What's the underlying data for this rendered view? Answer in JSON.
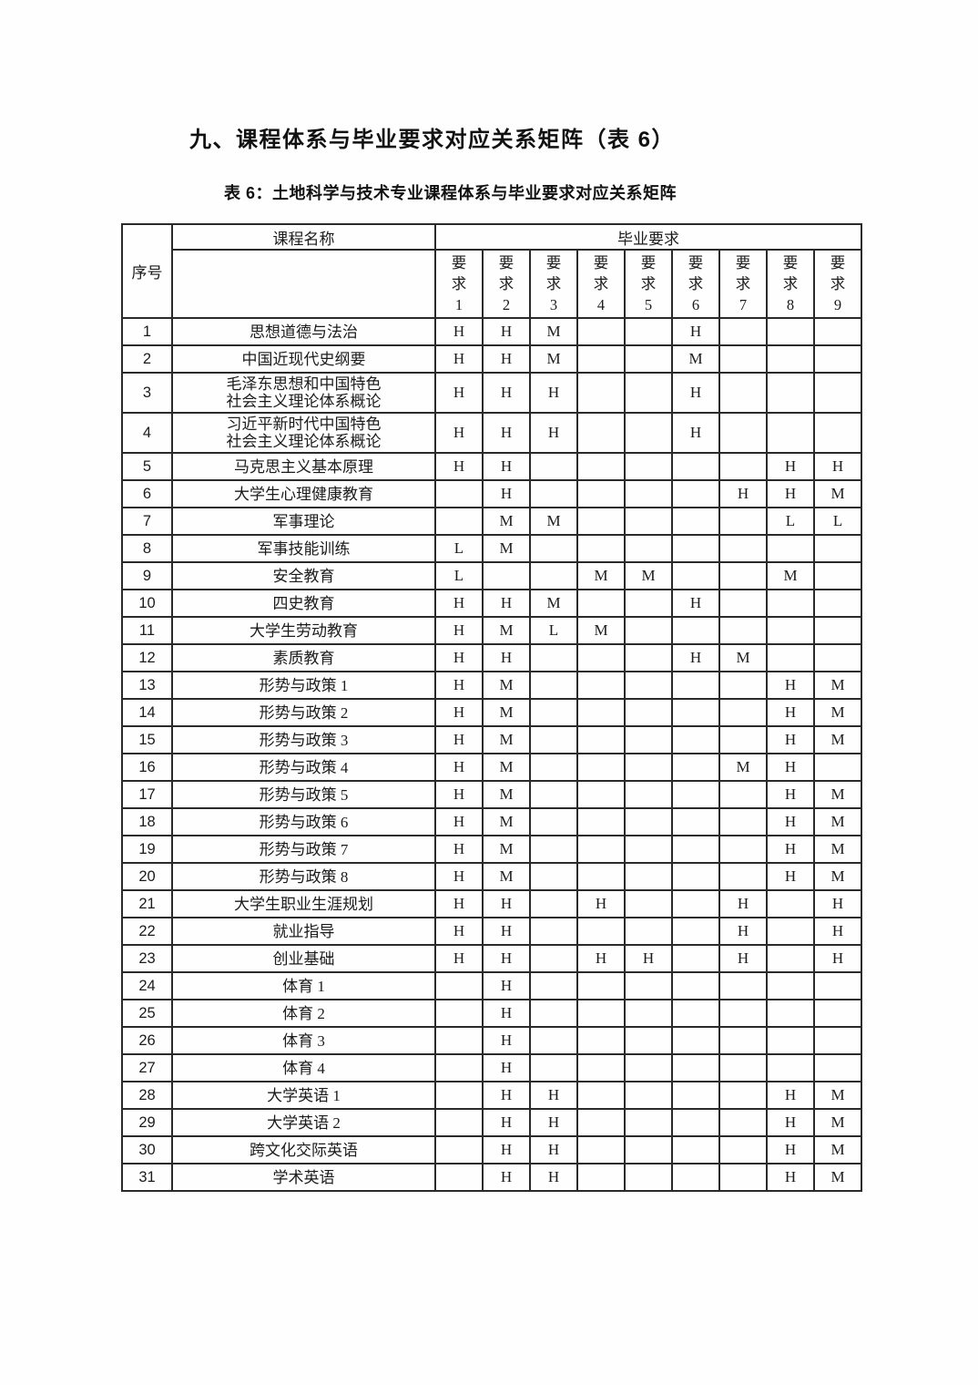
{
  "page": {
    "heading": "九、课程体系与毕业要求对应关系矩阵（表 6）",
    "caption": "表 6：土地科学与技术专业课程体系与毕业要求对应关系矩阵"
  },
  "table": {
    "header": {
      "index_label": "序号",
      "course_label": "课程名称",
      "group_label": "毕业要求",
      "requirements": [
        "要\n求\n1",
        "要\n求\n2",
        "要\n求\n3",
        "要\n求\n4",
        "要\n求\n5",
        "要\n求\n6",
        "要\n求\n7",
        "要\n求\n8",
        "要\n求\n9"
      ]
    },
    "rows": [
      {
        "no": "1",
        "course": "思想道德与法治",
        "values": [
          "H",
          "H",
          "M",
          "",
          "",
          "H",
          "",
          "",
          ""
        ]
      },
      {
        "no": "2",
        "course": "中国近现代史纲要",
        "values": [
          "H",
          "H",
          "M",
          "",
          "",
          "M",
          "",
          "",
          ""
        ]
      },
      {
        "no": "3",
        "course": "毛泽东思想和中国特色\n社会主义理论体系概论",
        "values": [
          "H",
          "H",
          "H",
          "",
          "",
          "H",
          "",
          "",
          ""
        ]
      },
      {
        "no": "4",
        "course": "习近平新时代中国特色\n社会主义理论体系概论",
        "values": [
          "H",
          "H",
          "H",
          "",
          "",
          "H",
          "",
          "",
          ""
        ]
      },
      {
        "no": "5",
        "course": "马克思主义基本原理",
        "values": [
          "H",
          "H",
          "",
          "",
          "",
          "",
          "",
          "H",
          "H"
        ]
      },
      {
        "no": "6",
        "course": "大学生心理健康教育",
        "values": [
          "",
          "H",
          "",
          "",
          "",
          "",
          "H",
          "H",
          "M"
        ]
      },
      {
        "no": "7",
        "course": "军事理论",
        "values": [
          "",
          "M",
          "M",
          "",
          "",
          "",
          "",
          "L",
          "L"
        ]
      },
      {
        "no": "8",
        "course": "军事技能训练",
        "values": [
          "L",
          "M",
          "",
          "",
          "",
          "",
          "",
          "",
          ""
        ]
      },
      {
        "no": "9",
        "course": "安全教育",
        "values": [
          "L",
          "",
          "",
          "M",
          "M",
          "",
          "",
          "M",
          ""
        ]
      },
      {
        "no": "10",
        "course": "四史教育",
        "values": [
          "H",
          "H",
          "M",
          "",
          "",
          "H",
          "",
          "",
          ""
        ]
      },
      {
        "no": "11",
        "course": "大学生劳动教育",
        "values": [
          "H",
          "M",
          "L",
          "M",
          "",
          "",
          "",
          "",
          ""
        ]
      },
      {
        "no": "12",
        "course": "素质教育",
        "values": [
          "H",
          "H",
          "",
          "",
          "",
          "H",
          "M",
          "",
          ""
        ]
      },
      {
        "no": "13",
        "course": "形势与政策 1",
        "values": [
          "H",
          "M",
          "",
          "",
          "",
          "",
          "",
          "H",
          "M"
        ]
      },
      {
        "no": "14",
        "course": "形势与政策 2",
        "values": [
          "H",
          "M",
          "",
          "",
          "",
          "",
          "",
          "H",
          "M"
        ]
      },
      {
        "no": "15",
        "course": "形势与政策 3",
        "values": [
          "H",
          "M",
          "",
          "",
          "",
          "",
          "",
          "H",
          "M"
        ]
      },
      {
        "no": "16",
        "course": "形势与政策 4",
        "values": [
          "H",
          "M",
          "",
          "",
          "",
          "",
          "M",
          "H",
          ""
        ]
      },
      {
        "no": "17",
        "course": "形势与政策 5",
        "values": [
          "H",
          "M",
          "",
          "",
          "",
          "",
          "",
          "H",
          "M"
        ]
      },
      {
        "no": "18",
        "course": "形势与政策 6",
        "values": [
          "H",
          "M",
          "",
          "",
          "",
          "",
          "",
          "H",
          "M"
        ]
      },
      {
        "no": "19",
        "course": "形势与政策 7",
        "values": [
          "H",
          "M",
          "",
          "",
          "",
          "",
          "",
          "H",
          "M"
        ]
      },
      {
        "no": "20",
        "course": "形势与政策 8",
        "values": [
          "H",
          "M",
          "",
          "",
          "",
          "",
          "",
          "H",
          "M"
        ]
      },
      {
        "no": "21",
        "course": "大学生职业生涯规划",
        "values": [
          "H",
          "H",
          "",
          "H",
          "",
          "",
          "H",
          "",
          "H"
        ]
      },
      {
        "no": "22",
        "course": "就业指导",
        "values": [
          "H",
          "H",
          "",
          "",
          "",
          "",
          "H",
          "",
          "H"
        ]
      },
      {
        "no": "23",
        "course": "创业基础",
        "values": [
          "H",
          "H",
          "",
          "H",
          "H",
          "",
          "H",
          "",
          "H"
        ]
      },
      {
        "no": "24",
        "course": "体育 1",
        "values": [
          "",
          "H",
          "",
          "",
          "",
          "",
          "",
          "",
          ""
        ]
      },
      {
        "no": "25",
        "course": "体育 2",
        "values": [
          "",
          "H",
          "",
          "",
          "",
          "",
          "",
          "",
          ""
        ]
      },
      {
        "no": "26",
        "course": "体育 3",
        "values": [
          "",
          "H",
          "",
          "",
          "",
          "",
          "",
          "",
          ""
        ]
      },
      {
        "no": "27",
        "course": "体育 4",
        "values": [
          "",
          "H",
          "",
          "",
          "",
          "",
          "",
          "",
          ""
        ]
      },
      {
        "no": "28",
        "course": "大学英语 1",
        "values": [
          "",
          "H",
          "H",
          "",
          "",
          "",
          "",
          "H",
          "M"
        ]
      },
      {
        "no": "29",
        "course": "大学英语 2",
        "values": [
          "",
          "H",
          "H",
          "",
          "",
          "",
          "",
          "H",
          "M"
        ]
      },
      {
        "no": "30",
        "course": "跨文化交际英语",
        "values": [
          "",
          "H",
          "H",
          "",
          "",
          "",
          "",
          "H",
          "M"
        ]
      },
      {
        "no": "31",
        "course": "学术英语",
        "values": [
          "",
          "H",
          "H",
          "",
          "",
          "",
          "",
          "H",
          "M"
        ]
      }
    ]
  }
}
